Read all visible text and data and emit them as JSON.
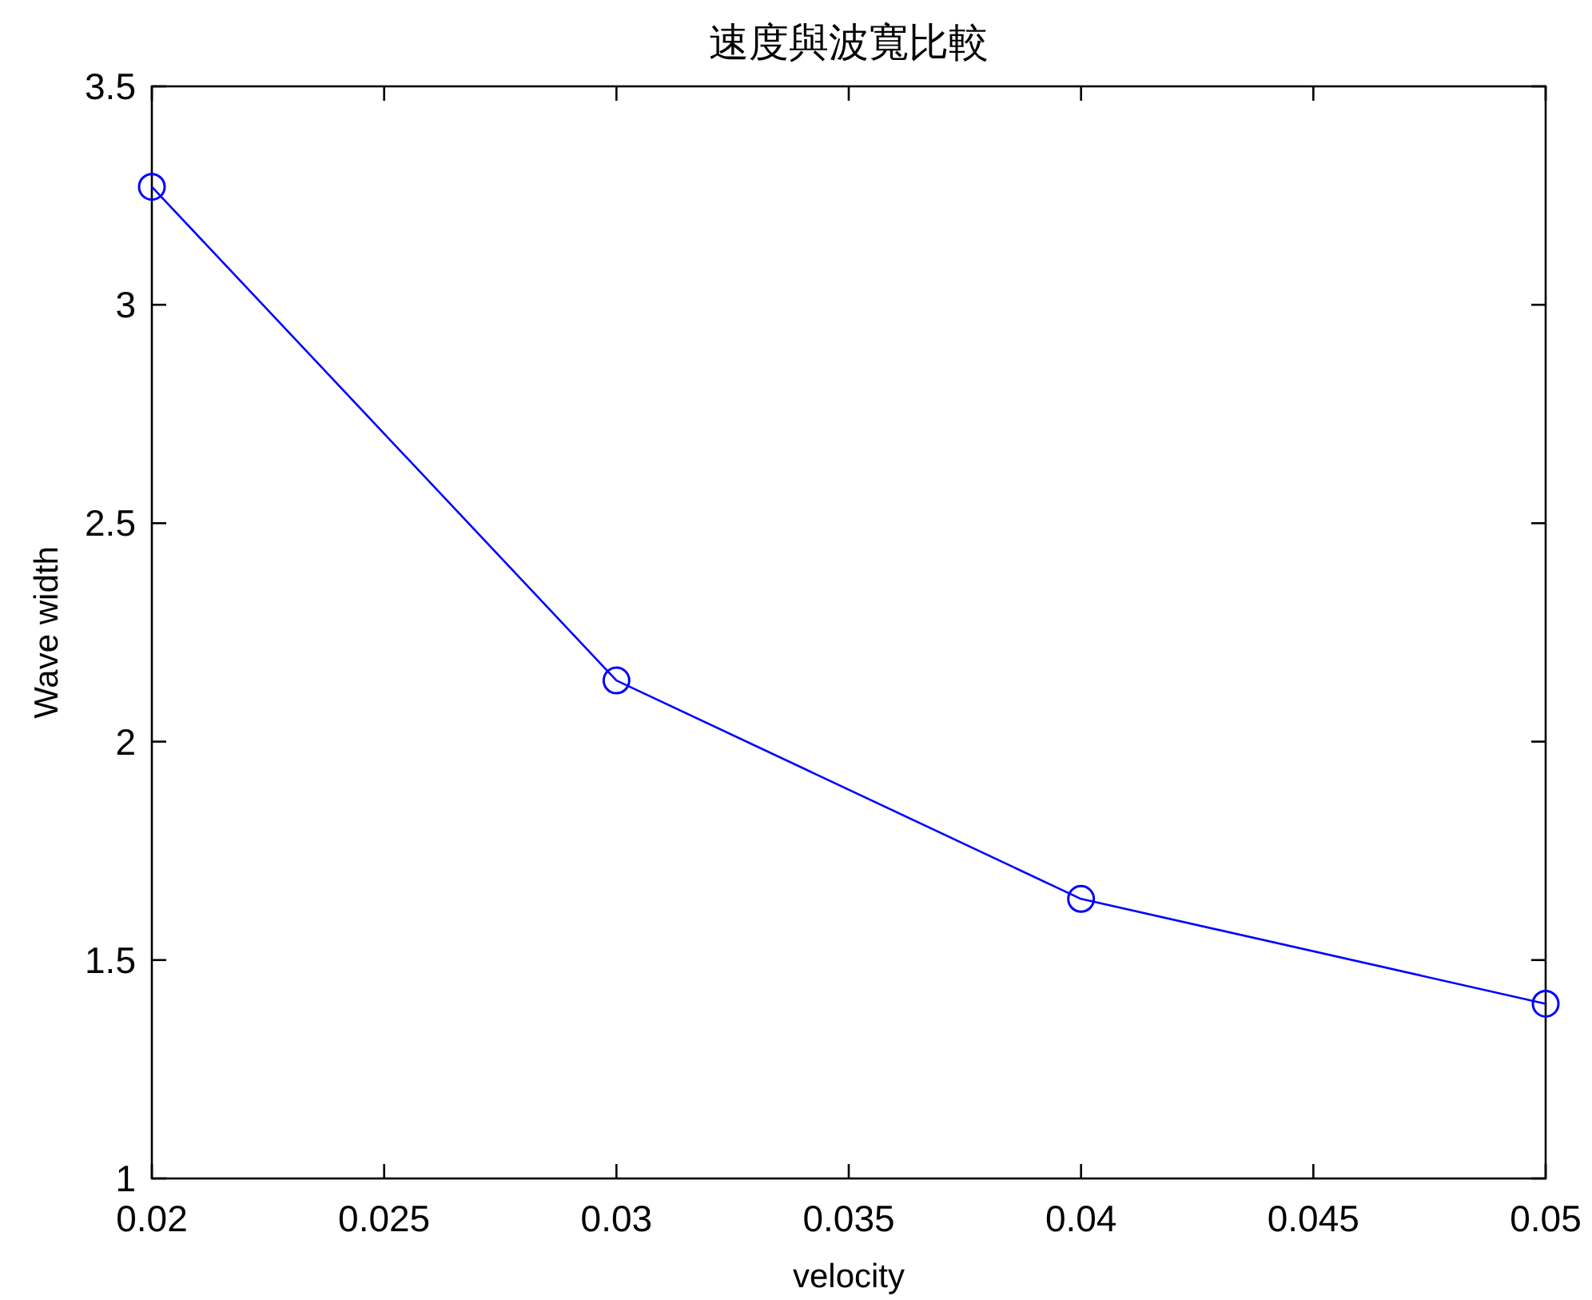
{
  "chart_data": {
    "type": "line",
    "title": "速度與波寬比較",
    "xlabel": "velocity",
    "ylabel": "Wave width",
    "x": [
      0.02,
      0.03,
      0.04,
      0.05
    ],
    "series": [
      {
        "color": "#0000ff",
        "values": [
          3.27,
          2.14,
          1.64,
          1.4
        ]
      }
    ],
    "xlim": [
      0.02,
      0.05
    ],
    "ylim": [
      1,
      3.5
    ],
    "xticks": [
      0.02,
      0.025,
      0.03,
      0.035,
      0.04,
      0.045,
      0.05
    ],
    "yticks": [
      1,
      1.5,
      2,
      2.5,
      3,
      3.5
    ],
    "marker": "circle",
    "line_style": "solid"
  }
}
